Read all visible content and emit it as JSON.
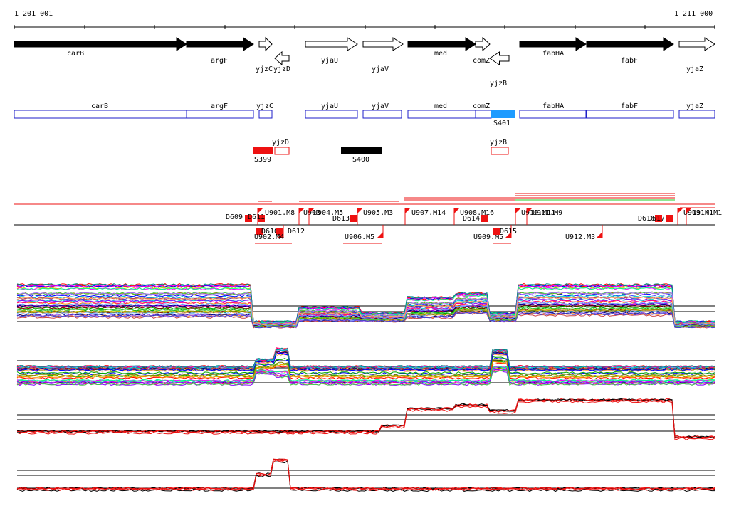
{
  "axis": {
    "left_label": "1 201 001",
    "right_label": "1 211 000"
  },
  "genes_track1": [
    {
      "name": "carB",
      "strand": "+",
      "fill": "black"
    },
    {
      "name": "argF",
      "strand": "+",
      "fill": "black"
    },
    {
      "name": "yjzC",
      "strand": "+",
      "fill": "white"
    },
    {
      "name": "yjzD",
      "strand": "-",
      "fill": "white"
    },
    {
      "name": "yjaU",
      "strand": "+",
      "fill": "white"
    },
    {
      "name": "yjaV",
      "strand": "+",
      "fill": "white"
    },
    {
      "name": "med",
      "strand": "+",
      "fill": "black"
    },
    {
      "name": "comZ",
      "strand": "+",
      "fill": "white"
    },
    {
      "name": "yjzB",
      "strand": "-",
      "fill": "white"
    },
    {
      "name": "fabHA",
      "strand": "+",
      "fill": "black"
    },
    {
      "name": "fabF",
      "strand": "+",
      "fill": "black"
    },
    {
      "name": "yjaZ",
      "strand": "+",
      "fill": "white"
    }
  ],
  "genes_track2": [
    {
      "name": "carB"
    },
    {
      "name": "argF"
    },
    {
      "name": "yjzC"
    },
    {
      "name": "yjaU"
    },
    {
      "name": "yjaV"
    },
    {
      "name": "med"
    },
    {
      "name": "comZ"
    },
    {
      "name": "fabHA"
    },
    {
      "name": "fabF"
    },
    {
      "name": "yjaZ"
    }
  ],
  "s401_label": "S401",
  "track3": [
    {
      "name": "yjzD"
    },
    {
      "name": "yjzB"
    }
  ],
  "segments": [
    {
      "label": "S399"
    },
    {
      "label": "S400"
    }
  ],
  "features_upper": [
    "D609",
    "D611",
    "U901.M8",
    "U903",
    "U904.M5",
    "D613",
    "U905.M3",
    "U907.M14",
    "U908.M16",
    "D614",
    "U910.M11",
    "U911.M9",
    "D616",
    "D617",
    "U913.M1",
    "U914.M1"
  ],
  "features_lower": [
    "D610",
    "D612",
    "U902.M4",
    "U906.M5",
    "U909.M5",
    "D615",
    "U912.M3"
  ],
  "colors": {
    "blue_outline": "#1e1ec8",
    "cyan": "#1e9bff",
    "red": "#ee1111",
    "green": "#22cc22"
  }
}
